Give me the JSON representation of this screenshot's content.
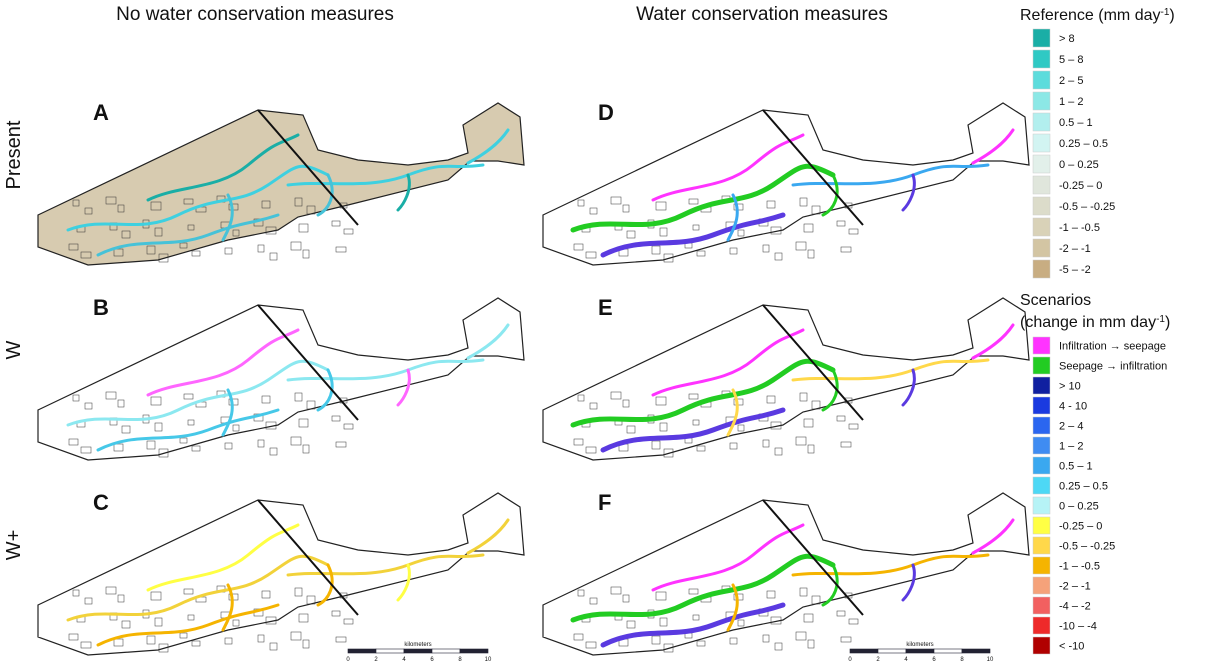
{
  "columns": [
    "No water conservation measures",
    "Water conservation measures"
  ],
  "rows": [
    "Present",
    "W",
    "W+"
  ],
  "panels": [
    "A",
    "B",
    "C",
    "D",
    "E",
    "F"
  ],
  "scale_bars": [
    {
      "label": "kilometers",
      "ticks": [
        0,
        2,
        4,
        6,
        8,
        10
      ]
    },
    {
      "label": "kilometers",
      "ticks": [
        0,
        2,
        4,
        6,
        8,
        10
      ]
    }
  ],
  "legends": [
    {
      "title": "Reference  (mm day",
      "title_sup": "-1",
      "title_end": ")",
      "items": [
        {
          "label": "> 8",
          "color": "#1aaea6"
        },
        {
          "label": "5 – 8",
          "color": "#2fc9c4"
        },
        {
          "label": "2 – 5",
          "color": "#5ddcdc"
        },
        {
          "label": "1 – 2",
          "color": "#8ce8e6"
        },
        {
          "label": "0.5 – 1",
          "color": "#b2efee"
        },
        {
          "label": "0.25 – 0.5",
          "color": "#d2f4f2"
        },
        {
          "label": "0 – 0.25",
          "color": "#e2f0ea"
        },
        {
          "label": "-0.25 – 0",
          "color": "#e0e6dc"
        },
        {
          "label": "-0.5 – -0.25",
          "color": "#dcdcca"
        },
        {
          "label": "-1 – -0.5",
          "color": "#d9d2b8"
        },
        {
          "label": "-2 – -1",
          "color": "#d3c5a3"
        },
        {
          "label": "-5 – -2",
          "color": "#c8ad82"
        }
      ]
    },
    {
      "heading": "Scenarios",
      "title": "(change in mm day",
      "title_sup": "-1",
      "title_end": ")",
      "items": [
        {
          "label": "Infiltration → seepage",
          "color": "#ff33ff"
        },
        {
          "label": "Seepage → infiltration",
          "color": "#22cc22"
        },
        {
          "label": "> 10",
          "color": "#1020a0"
        },
        {
          "label": "4 - 10",
          "color": "#1a3ae0"
        },
        {
          "label": "2 – 4",
          "color": "#2b66f0"
        },
        {
          "label": "1 – 2",
          "color": "#3f8cf2"
        },
        {
          "label": "0.5 – 1",
          "color": "#3aa8f0"
        },
        {
          "label": "0.25 – 0.5",
          "color": "#4dd8f5"
        },
        {
          "label": "0 – 0.25",
          "color": "#b6f3f6"
        },
        {
          "label": "-0.25 – 0",
          "color": "#ffff44"
        },
        {
          "label": "-0.5 – -0.25",
          "color": "#ffd84a"
        },
        {
          "label": "-1 – -0.5",
          "color": "#f5b400"
        },
        {
          "label": "-2 – -1",
          "color": "#f5a27a"
        },
        {
          "label": "-4 – -2",
          "color": "#f26060"
        },
        {
          "label": "-10 – -4",
          "color": "#ee2a2a"
        },
        {
          "label": "< -10",
          "color": "#b00000"
        }
      ]
    }
  ]
}
